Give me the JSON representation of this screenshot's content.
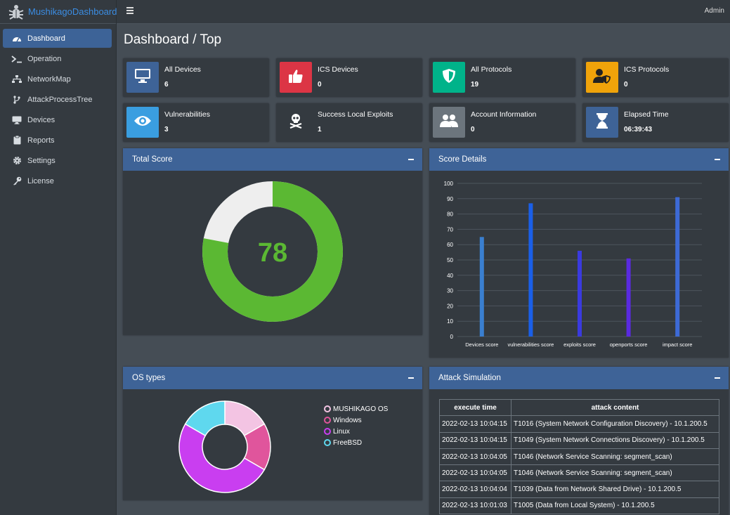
{
  "brand": {
    "name": "MushikagoDashboard"
  },
  "topbar": {
    "user": "Admin"
  },
  "sidebar": {
    "items": [
      {
        "label": "Dashboard",
        "icon": "tachometer-icon"
      },
      {
        "label": "Operation",
        "icon": "terminal-icon"
      },
      {
        "label": "NetworkMap",
        "icon": "sitemap-icon"
      },
      {
        "label": "AttackProcessTree",
        "icon": "code-branch-icon"
      },
      {
        "label": "Devices",
        "icon": "desktop-icon"
      },
      {
        "label": "Reports",
        "icon": "clipboard-icon"
      },
      {
        "label": "Settings",
        "icon": "gear-icon"
      },
      {
        "label": "License",
        "icon": "key-icon"
      }
    ]
  },
  "page": {
    "title": "Dashboard / Top"
  },
  "info_boxes": [
    {
      "label": "All Devices",
      "value": "6",
      "color": "#3e6397",
      "icon": "desktop-icon"
    },
    {
      "label": "ICS Devices",
      "value": "0",
      "color": "#dc3545",
      "icon": "thumbs-up-icon"
    },
    {
      "label": "All Protocols",
      "value": "19",
      "color": "#00b38a",
      "icon": "shield-icon"
    },
    {
      "label": "ICS Protocols",
      "value": "0",
      "color": "#f0a30a",
      "icon": "user-shield-icon"
    },
    {
      "label": "Vulnerabilities",
      "value": "3",
      "color": "#3a9ee0",
      "icon": "eye-icon"
    },
    {
      "label": "Success Local Exploits",
      "value": "1",
      "color": "#343a40",
      "icon": "skull-crossbones-icon"
    },
    {
      "label": "Account Information",
      "value": "0",
      "color": "#6c757d",
      "icon": "users-icon"
    },
    {
      "label": "Elapsed Time",
      "value": "06:39:43",
      "color": "#3e6397",
      "icon": "hourglass-icon"
    }
  ],
  "total_score": {
    "title": "Total Score",
    "value": "78",
    "score": 78,
    "max": 100,
    "fill_color": "#5bb833",
    "rest_color": "#eeeeee"
  },
  "score_details": {
    "title": "Score Details"
  },
  "os_types": {
    "title": "OS types"
  },
  "attack_simulation": {
    "title": "Attack Simulation",
    "columns": [
      "execute time",
      "attack content"
    ],
    "rows": [
      [
        "2022-02-13 10:04:15",
        "T1016 (System Network Configuration Discovery) - 10.1.200.5"
      ],
      [
        "2022-02-13 10:04:15",
        "T1049 (System Network Connections Discovery) - 10.1.200.5"
      ],
      [
        "2022-02-13 10:04:05",
        "T1046 (Network Service Scanning: segment_scan)"
      ],
      [
        "2022-02-13 10:04:05",
        "T1046 (Network Service Scanning: segment_scan)"
      ],
      [
        "2022-02-13 10:04:04",
        "T1039 (Data from Network Shared Drive) - 10.1.200.5"
      ],
      [
        "2022-02-13 10:01:03",
        "T1005 (Data from Local System) - 10.1.200.5"
      ]
    ]
  },
  "chart_data": [
    {
      "type": "pie",
      "labels": [
        "MUSHIKAGO OS",
        "Windows",
        "Linux",
        "FreeBSD"
      ],
      "values": [
        1,
        1,
        3,
        1
      ],
      "colors": [
        "#f3c4e3",
        "#e0559c",
        "#c93ef0",
        "#5fd8ee"
      ],
      "legend": "right"
    },
    {
      "type": "bar",
      "categories": [
        "Devices score",
        "vulnerabilities score",
        "exploits score",
        "openports score",
        "impact score"
      ],
      "values": [
        65,
        87,
        56,
        51,
        91
      ],
      "colors": [
        "#3a7fd0",
        "#1a5fe8",
        "#3a3ae0",
        "#5a2ae0",
        "#3d6ad6"
      ],
      "ylim": [
        0,
        100
      ],
      "yticks": [
        "0",
        "10",
        "20",
        "30",
        "40",
        "50",
        "60",
        "70",
        "80",
        "90",
        "100"
      ],
      "grid": true
    }
  ]
}
